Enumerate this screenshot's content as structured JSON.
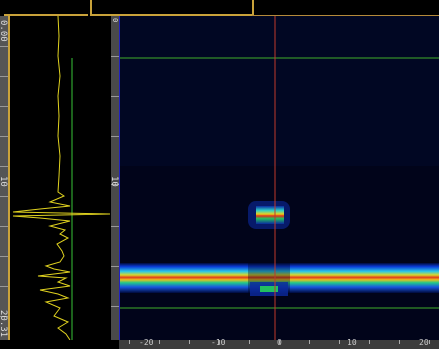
{
  "header": {
    "field1_text": "",
    "field2_text": ""
  },
  "depth_ruler": {
    "start_label": "0.00",
    "mid_label": "10",
    "end_label": "20.31"
  },
  "index_ruler": {
    "labels": [
      "-20",
      "-10",
      "0",
      "10",
      "20"
    ]
  },
  "colors": {
    "cursor_horizontal": "#3fae2a",
    "cursor_vertical": "#c0392b",
    "ascan_trace": "#e0d21f",
    "ascan_gate": "#37c437",
    "frame": "#c9a23a"
  }
}
